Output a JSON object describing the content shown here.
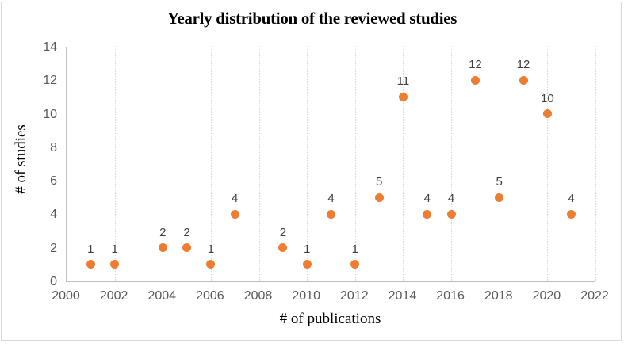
{
  "figure": {
    "title": "Yearly distribution of the reviewed studies",
    "x_axis_title": "# of publications",
    "y_axis_title": "# of studies"
  },
  "chart_data": {
    "type": "scatter",
    "title": "Yearly distribution of the reviewed studies",
    "xlabel": "# of publications",
    "ylabel": "# of studies",
    "x": [
      2001,
      2002,
      2004,
      2005,
      2006,
      2007,
      2009,
      2010,
      2011,
      2012,
      2013,
      2014,
      2015,
      2016,
      2017,
      2018,
      2019,
      2020,
      2021
    ],
    "y": [
      1,
      1,
      2,
      2,
      1,
      4,
      2,
      1,
      4,
      1,
      5,
      11,
      4,
      4,
      12,
      5,
      12,
      10,
      4
    ],
    "data_labels": [
      "1",
      "1",
      "2",
      "2",
      "1",
      "4",
      "2",
      "1",
      "4",
      "1",
      "5",
      "11",
      "4",
      "4",
      "12",
      "5",
      "12",
      "10",
      "4"
    ],
    "xlim": [
      2000,
      2022
    ],
    "ylim": [
      0,
      14
    ],
    "x_ticks": [
      2000,
      2002,
      2004,
      2006,
      2008,
      2010,
      2012,
      2014,
      2016,
      2018,
      2020,
      2022
    ],
    "y_ticks": [
      0,
      2,
      4,
      6,
      8,
      10,
      12,
      14
    ],
    "grid": "vertical-dotted",
    "legend": "none",
    "colors": {
      "point": "#ED7D31",
      "data_label": "#404040",
      "tick_label": "#595959",
      "axis_line": "#BFBFBF",
      "gridline": "#D9D9D9",
      "figure_border": "#D9D9D9",
      "title": "#000000"
    }
  }
}
